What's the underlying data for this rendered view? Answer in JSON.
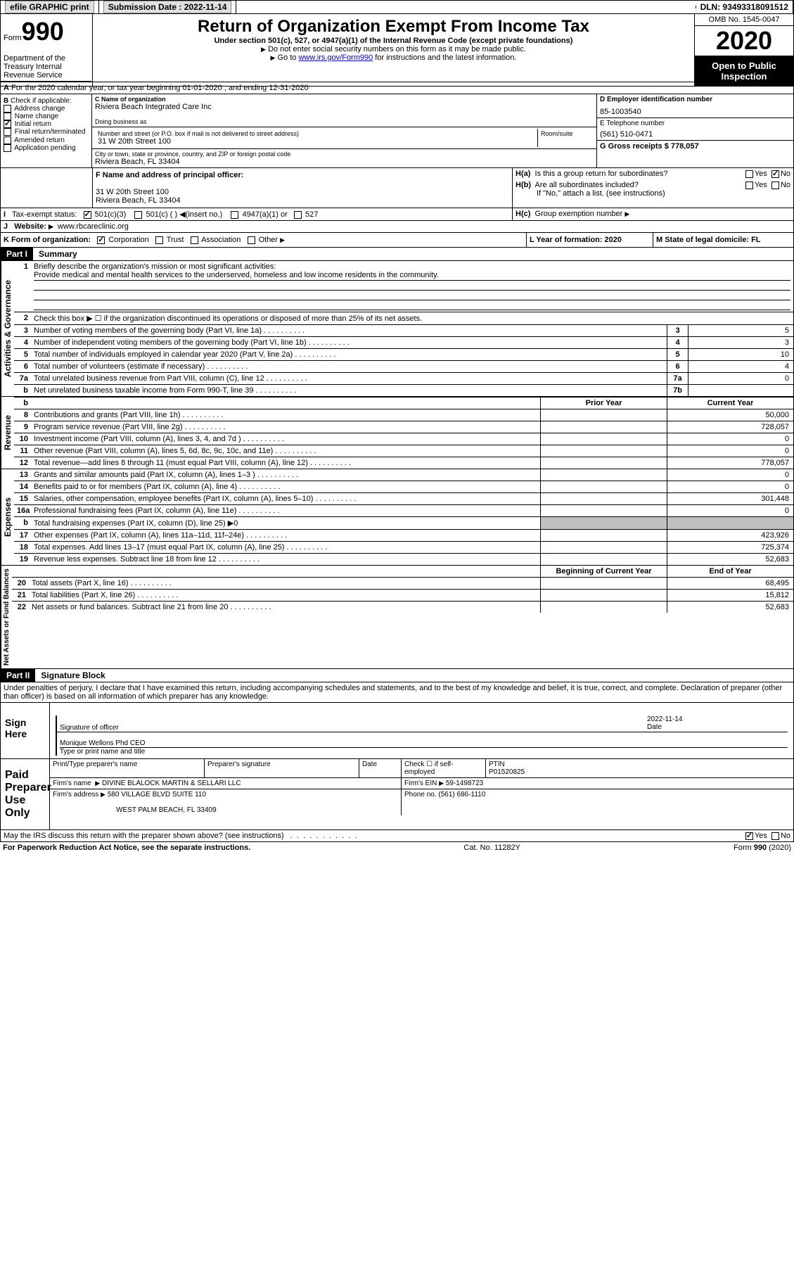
{
  "topbar": {
    "efile": "efile GRAPHIC print",
    "submission_label": "Submission Date : 2022-11-14",
    "dln_label": "DLN: 93493318091512"
  },
  "header": {
    "form_label": "Form",
    "form_num": "990",
    "title": "Return of Organization Exempt From Income Tax",
    "subtitle": "Under section 501(c), 527, or 4947(a)(1) of the Internal Revenue Code (except private foundations)",
    "note1": "Do not enter social security numbers on this form as it may be made public.",
    "note2_pre": "Go to ",
    "note2_link": "www.irs.gov/Form990",
    "note2_post": " for instructions and the latest information.",
    "dept": "Department of the Treasury\nInternal Revenue Service",
    "omb": "OMB No. 1545-0047",
    "year": "2020",
    "inspect": "Open to Public Inspection"
  },
  "sectionA": "For the 2020 calendar year, or tax year beginning 01-01-2020    , and ending 12-31-2020",
  "sectionB": {
    "label": "Check if applicable:",
    "opts": [
      "Address change",
      "Name change",
      "Initial return",
      "Final return/terminated",
      "Amended return",
      "Application pending"
    ],
    "checked_idx": 2
  },
  "sectionC": {
    "name_label": "C Name of organization",
    "name": "Riviera Beach Integrated Care Inc",
    "dba_label": "Doing business as",
    "street_label": "Number and street (or P.O. box if mail is not delivered to street address)",
    "room_label": "Room/suite",
    "street": "31 W 20th Street 100",
    "city_label": "City or town, state or province, country, and ZIP or foreign postal code",
    "city": "Riviera Beach, FL  33404"
  },
  "sectionD": {
    "label": "D Employer identification number",
    "val": "85-1003540"
  },
  "sectionE": {
    "label": "E Telephone number",
    "val": "(561) 510-0471"
  },
  "sectionG": {
    "label": "G Gross receipts $ 778,057"
  },
  "sectionF": {
    "label": "F  Name and address of principal officer:",
    "addr1": "31 W 20th Street 100",
    "addr2": "Riviera Beach, FL  33404"
  },
  "sectionH": {
    "a": "Is this a group return for subordinates?",
    "b": "Are all subordinates included?",
    "b_note": "If \"No,\" attach a list. (see instructions)",
    "c": "Group exemption number",
    "yes": "Yes",
    "no": "No"
  },
  "sectionI": {
    "label": "Tax-exempt status:",
    "o1": "501(c)(3)",
    "o2": "501(c) (  )",
    "o2_note": "(insert no.)",
    "o3": "4947(a)(1) or",
    "o4": "527"
  },
  "sectionJ": {
    "label": "Website:",
    "val": "www.rbcareclinic.org"
  },
  "sectionK": {
    "label": "K Form of organization:",
    "o1": "Corporation",
    "o2": "Trust",
    "o3": "Association",
    "o4": "Other"
  },
  "sectionL": {
    "label": "L Year of formation: 2020"
  },
  "sectionM": {
    "label": "M State of legal domicile: FL"
  },
  "part1": {
    "header": "Part I",
    "title": "Summary",
    "line1_label": "Briefly describe the organization's mission or most significant activities:",
    "line1_text": "Provide medical and mental health services to the underserved, homeless and low income residents in the community.",
    "line2": "Check this box ▶ ☐  if the organization discontinued its operations or disposed of more than 25% of its net assets.",
    "gov_label": "Activities & Governance",
    "rev_label": "Revenue",
    "exp_label": "Expenses",
    "net_label": "Net Assets or Fund Balances",
    "lines_gov": [
      {
        "n": "3",
        "t": "Number of voting members of the governing body (Part VI, line 1a)",
        "box": "3",
        "v": "5"
      },
      {
        "n": "4",
        "t": "Number of independent voting members of the governing body (Part VI, line 1b)",
        "box": "4",
        "v": "3"
      },
      {
        "n": "5",
        "t": "Total number of individuals employed in calendar year 2020 (Part V, line 2a)",
        "box": "5",
        "v": "10"
      },
      {
        "n": "6",
        "t": "Total number of volunteers (estimate if necessary)",
        "box": "6",
        "v": "4"
      },
      {
        "n": "7a",
        "t": "Total unrelated business revenue from Part VIII, column (C), line 12",
        "box": "7a",
        "v": "0"
      },
      {
        "n": "b",
        "t": "Net unrelated business taxable income from Form 990-T, line 39",
        "box": "7b",
        "v": ""
      }
    ],
    "col_prior": "Prior Year",
    "col_current": "Current Year",
    "col_begin": "Beginning of Current Year",
    "col_end": "End of Year",
    "lines_rev": [
      {
        "n": "8",
        "t": "Contributions and grants (Part VIII, line 1h)",
        "cy": "50,000"
      },
      {
        "n": "9",
        "t": "Program service revenue (Part VIII, line 2g)",
        "cy": "728,057"
      },
      {
        "n": "10",
        "t": "Investment income (Part VIII, column (A), lines 3, 4, and 7d )",
        "cy": "0"
      },
      {
        "n": "11",
        "t": "Other revenue (Part VIII, column (A), lines 5, 6d, 8c, 9c, 10c, and 11e)",
        "cy": "0"
      },
      {
        "n": "12",
        "t": "Total revenue—add lines 8 through 11 (must equal Part VIII, column (A), line 12)",
        "cy": "778,057"
      }
    ],
    "lines_exp": [
      {
        "n": "13",
        "t": "Grants and similar amounts paid (Part IX, column (A), lines 1–3 )",
        "cy": "0"
      },
      {
        "n": "14",
        "t": "Benefits paid to or for members (Part IX, column (A), line 4)",
        "cy": "0"
      },
      {
        "n": "15",
        "t": "Salaries, other compensation, employee benefits (Part IX, column (A), lines 5–10)",
        "cy": "301,448"
      },
      {
        "n": "16a",
        "t": "Professional fundraising fees (Part IX, column (A), line 11e)",
        "cy": "0"
      },
      {
        "n": "b",
        "t": "Total fundraising expenses (Part IX, column (D), line 25) ▶0",
        "cy": null,
        "shaded": true
      },
      {
        "n": "17",
        "t": "Other expenses (Part IX, column (A), lines 11a–11d, 11f–24e)",
        "cy": "423,926"
      },
      {
        "n": "18",
        "t": "Total expenses. Add lines 13–17 (must equal Part IX, column (A), line 25)",
        "cy": "725,374"
      },
      {
        "n": "19",
        "t": "Revenue less expenses. Subtract line 18 from line 12",
        "cy": "52,683"
      }
    ],
    "lines_net": [
      {
        "n": "20",
        "t": "Total assets (Part X, line 16)",
        "cy": "68,495"
      },
      {
        "n": "21",
        "t": "Total liabilities (Part X, line 26)",
        "cy": "15,812"
      },
      {
        "n": "22",
        "t": "Net assets or fund balances. Subtract line 21 from line 20",
        "cy": "52,683"
      }
    ]
  },
  "part2": {
    "header": "Part II",
    "title": "Signature Block",
    "perjury": "Under penalties of perjury, I declare that I have examined this return, including accompanying schedules and statements, and to the best of my knowledge and belief, it is true, correct, and complete. Declaration of preparer (other than officer) is based on all information of which preparer has any knowledge.",
    "sign_here": "Sign Here",
    "sig_officer": "Signature of officer",
    "sig_date": "2022-11-14",
    "date_label": "Date",
    "officer_name": "Monique Wellons Phd  CEO",
    "type_label": "Type or print name and title",
    "paid_label": "Paid Preparer Use Only",
    "prep_name_label": "Print/Type preparer's name",
    "prep_sig_label": "Preparer's signature",
    "check_self": "Check ☐ if self-employed",
    "ptin_label": "PTIN",
    "ptin": "P01520825",
    "firm_name_label": "Firm's name",
    "firm_name": "DIVINE BLALOCK MARTIN & SELLARI LLC",
    "firm_ein_label": "Firm's EIN",
    "firm_ein": "59-1498723",
    "firm_addr_label": "Firm's address",
    "firm_addr1": "580 VILLAGE BLVD SUITE 110",
    "firm_addr2": "WEST PALM BEACH, FL  33409",
    "phone_label": "Phone no.",
    "phone": "(561) 686-1110",
    "discuss": "May the IRS discuss this return with the preparer shown above? (see instructions)"
  },
  "footer": {
    "paperwork": "For Paperwork Reduction Act Notice, see the separate instructions.",
    "cat": "Cat. No. 11282Y",
    "form": "Form 990 (2020)"
  }
}
